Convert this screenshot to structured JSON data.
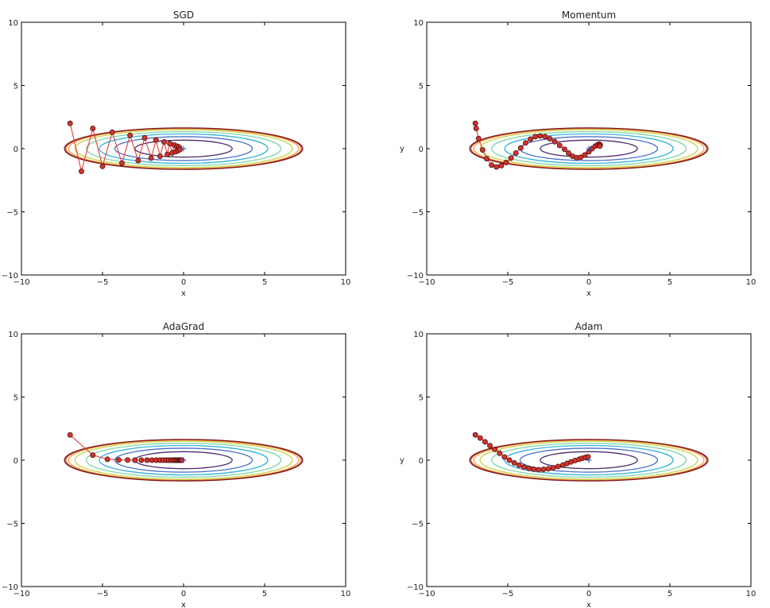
{
  "chart_data": [
    {
      "type": "line",
      "title": "SGD",
      "xlabel": "x",
      "ylabel": "",
      "xlim": [
        -10,
        10
      ],
      "ylim": [
        -10,
        10
      ],
      "xticks": [
        "−10",
        "−5",
        "0",
        "5",
        "10"
      ],
      "yticks": [
        "10",
        "5",
        "0",
        "−5",
        "−10"
      ],
      "grid": false,
      "series": [
        {
          "marker": "circle",
          "color": "#e8403a",
          "x": [
            -7.0,
            -6.3,
            -5.6,
            -5.0,
            -4.4,
            -3.8,
            -3.3,
            -2.8,
            -2.4,
            -2.0,
            -1.7,
            -1.45,
            -1.2,
            -1.0,
            -0.85,
            -0.7,
            -0.58,
            -0.48,
            -0.4,
            -0.33,
            -0.27,
            -0.22
          ],
          "y": [
            2.0,
            -1.8,
            1.6,
            -1.4,
            1.3,
            -1.15,
            1.05,
            -0.95,
            0.85,
            -0.75,
            0.68,
            -0.6,
            0.53,
            -0.46,
            0.4,
            -0.34,
            0.29,
            -0.24,
            0.19,
            -0.15,
            0.11,
            -0.07
          ]
        }
      ],
      "optimum": {
        "x": 0,
        "y": 0,
        "marker": "+"
      }
    },
    {
      "type": "line",
      "title": "Momentum",
      "xlabel": "x",
      "ylabel": "y",
      "xlim": [
        -10,
        10
      ],
      "ylim": [
        -10,
        10
      ],
      "xticks": [
        "−10",
        "−5",
        "0",
        "5",
        "10"
      ],
      "yticks": [
        "10",
        "5",
        "0",
        "−5",
        "−10"
      ],
      "grid": false,
      "series": [
        {
          "marker": "circle",
          "color": "#e8403a",
          "x": [
            -7.0,
            -6.95,
            -6.8,
            -6.55,
            -6.3,
            -6.0,
            -5.7,
            -5.4,
            -5.1,
            -4.8,
            -4.5,
            -4.2,
            -3.9,
            -3.6,
            -3.3,
            -3.0,
            -2.7,
            -2.4,
            -2.1,
            -1.8,
            -1.5,
            -1.25,
            -1.0,
            -0.75,
            -0.5,
            -0.25,
            0.0,
            0.2,
            0.4,
            0.55,
            0.65,
            0.7,
            0.68
          ],
          "y": [
            2.0,
            1.6,
            0.8,
            -0.1,
            -0.8,
            -1.3,
            -1.45,
            -1.35,
            -1.1,
            -0.75,
            -0.35,
            0.05,
            0.45,
            0.75,
            0.95,
            1.0,
            0.95,
            0.78,
            0.55,
            0.25,
            -0.05,
            -0.35,
            -0.6,
            -0.72,
            -0.68,
            -0.5,
            -0.25,
            0.0,
            0.2,
            0.32,
            0.35,
            0.3,
            0.2
          ]
        }
      ],
      "optimum": {
        "x": 0,
        "y": 0,
        "marker": "+"
      }
    },
    {
      "type": "line",
      "title": "AdaGrad",
      "xlabel": "x",
      "ylabel": "",
      "xlim": [
        -10,
        10
      ],
      "ylim": [
        -10,
        10
      ],
      "xticks": [
        "−10",
        "−5",
        "0",
        "5",
        "10"
      ],
      "yticks": [
        "10",
        "5",
        "0",
        "−5",
        "−10"
      ],
      "grid": false,
      "series": [
        {
          "marker": "circle",
          "color": "#e8403a",
          "x": [
            -7.0,
            -5.6,
            -4.7,
            -4.0,
            -3.45,
            -3.0,
            -2.6,
            -2.25,
            -1.95,
            -1.68,
            -1.45,
            -1.25,
            -1.07,
            -0.92,
            -0.78,
            -0.66,
            -0.56,
            -0.47,
            -0.39,
            -0.32,
            -0.26,
            -0.2,
            -0.15,
            -0.1
          ],
          "y": [
            2.0,
            0.4,
            0.07,
            0.02,
            0.01,
            0.0,
            0.0,
            0.0,
            0.0,
            0.0,
            0.0,
            0.0,
            0.0,
            0.0,
            0.0,
            0.0,
            0.0,
            0.0,
            0.0,
            0.0,
            0.0,
            0.0,
            0.0,
            0.0
          ]
        }
      ],
      "optimum": {
        "x": 0,
        "y": 0,
        "marker": "+"
      }
    },
    {
      "type": "line",
      "title": "Adam",
      "xlabel": "x",
      "ylabel": "y",
      "xlim": [
        -10,
        10
      ],
      "ylim": [
        -10,
        10
      ],
      "xticks": [
        "−10",
        "−5",
        "0",
        "5",
        "10"
      ],
      "yticks": [
        "10",
        "5",
        "0",
        "−5",
        "−10"
      ],
      "grid": false,
      "series": [
        {
          "marker": "circle",
          "color": "#e8403a",
          "x": [
            -7.0,
            -6.7,
            -6.4,
            -6.1,
            -5.8,
            -5.5,
            -5.2,
            -4.9,
            -4.6,
            -4.3,
            -4.0,
            -3.7,
            -3.4,
            -3.1,
            -2.8,
            -2.5,
            -2.2,
            -1.9,
            -1.6,
            -1.35,
            -1.1,
            -0.85,
            -0.6,
            -0.4,
            -0.2,
            -0.05
          ],
          "y": [
            2.0,
            1.75,
            1.45,
            1.15,
            0.85,
            0.55,
            0.25,
            0.0,
            -0.22,
            -0.4,
            -0.55,
            -0.65,
            -0.72,
            -0.75,
            -0.73,
            -0.68,
            -0.6,
            -0.5,
            -0.38,
            -0.26,
            -0.14,
            -0.03,
            0.07,
            0.15,
            0.22,
            0.26
          ]
        }
      ],
      "optimum": {
        "x": 0,
        "y": 0,
        "marker": "+"
      }
    }
  ],
  "contour": {
    "function": "x^2/20 + y^2",
    "levels": [
      0.45,
      0.9,
      1.35,
      1.8,
      2.25,
      2.52,
      2.64,
      2.7
    ],
    "colors": [
      "#4a2a6a",
      "#4a72c4",
      "#36b4d8",
      "#7fd6a8",
      "#c8d34a",
      "#f0a040",
      "#d0452c",
      "#7a1c1c"
    ]
  }
}
